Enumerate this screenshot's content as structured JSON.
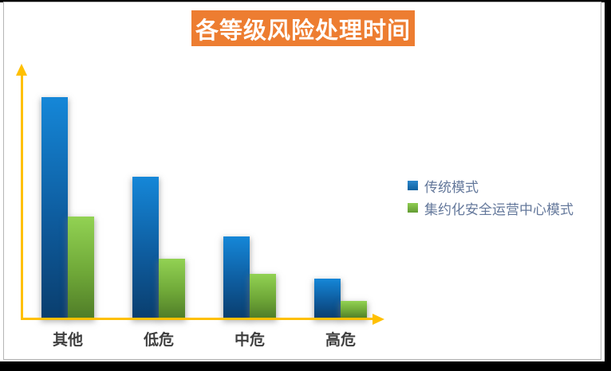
{
  "title": {
    "text": "各等级风险处理时间"
  },
  "legend": {
    "items": [
      {
        "label": "传统模式",
        "color_top": "#2B87CC",
        "color_bottom": "#10619F"
      },
      {
        "label": "集约化安全运营中心模式",
        "color_top": "#8FCC52",
        "color_bottom": "#639C33"
      }
    ]
  },
  "chart_data": {
    "type": "bar",
    "title": "各等级风险处理时间",
    "categories": [
      "其他",
      "低危",
      "中危",
      "高危"
    ],
    "series": [
      {
        "name": "传统模式",
        "values": [
          100,
          64,
          37,
          18
        ],
        "color_top": "#1587D8",
        "color_mid": "#0E5C9E",
        "color_bottom": "#0A3E6E"
      },
      {
        "name": "集约化安全运营中心模式",
        "values": [
          46,
          27,
          20,
          8
        ],
        "color_top": "#92D253",
        "color_mid": "#6FA838",
        "color_bottom": "#507D28"
      }
    ],
    "xlabel": "",
    "ylabel": "",
    "ylim": [
      0,
      100
    ],
    "grid": false,
    "legend_position": "right",
    "axis_color": "#FFC000",
    "banner_color": "#ED7D31",
    "note": "No numeric tick labels or gridlines are shown; values are relative bar heights with the tallest bar = 100."
  }
}
